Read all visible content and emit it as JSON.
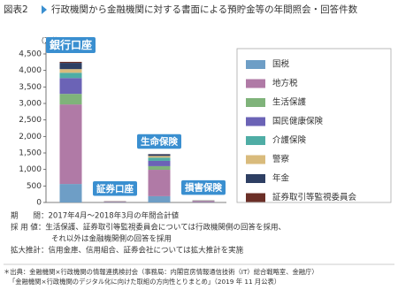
{
  "chart_data": {
    "type": "stacked_bar",
    "figure_label": "図表2",
    "title": "行政機関から金融機関に対する書面による預貯金等の年間照会・回答件数",
    "y_label": "（万件）",
    "categories": [
      "銀行口座",
      "証券口座",
      "生命保険",
      "損害保険"
    ],
    "series": [
      {
        "name": "国税",
        "color": "#6e9ec6",
        "values": [
          560,
          10,
          190,
          10
        ]
      },
      {
        "name": "地方税",
        "color": "#b07aa6",
        "values": [
          2410,
          15,
          800,
          40
        ]
      },
      {
        "name": "生活保護",
        "color": "#7fb37a",
        "values": [
          320,
          2,
          110,
          5
        ]
      },
      {
        "name": "国民健康保険",
        "color": "#6b63b6",
        "values": [
          480,
          2,
          160,
          5
        ]
      },
      {
        "name": "介護保険",
        "color": "#4fada5",
        "values": [
          160,
          1,
          100,
          3
        ]
      },
      {
        "name": "警察",
        "color": "#d9bb7c",
        "values": [
          110,
          3,
          50,
          5
        ]
      },
      {
        "name": "年金",
        "color": "#2e3f63",
        "values": [
          190,
          1,
          50,
          2
        ]
      },
      {
        "name": "証券取引等監視委員会",
        "color": "#6b2f27",
        "values": [
          30,
          6,
          5,
          0
        ]
      }
    ],
    "ylim": [
      0,
      4500
    ],
    "yticks": [
      0,
      500,
      {
        "value": 1000,
        "label": "1,000"
      },
      {
        "value": 1500,
        "label": "1,500"
      },
      {
        "value": 2000,
        "label": "2,000"
      },
      {
        "value": 2500,
        "label": "2,500"
      },
      {
        "value": 3000,
        "label": "3,000"
      },
      {
        "value": 3500,
        "label": "3,500"
      },
      {
        "value": 4000,
        "label": "4,000"
      },
      {
        "value": 4500,
        "label": "4,500"
      }
    ],
    "grid": false,
    "notes": [
      "期　　間：2017年4月〜2018年3月の年間合計値",
      "採 用 値：生活保護、証券取引等監視委員会については行政機関側の回答を採用、",
      "それ以外は金融機関側の回答を採用",
      "拡大推計：信用金庫、信用組合、証券会社については拡大推計を実施"
    ],
    "source": [
      "＊出典：金融機関×行政機関の情報連携検討会（事務局：内閣官房情報通信技術（IT）総合戦略室、金融庁）",
      "「金融機関×行政機関のデジタル化に向けた取組の方向性とりまとめ」（2019 年 11 月公表）"
    ]
  }
}
